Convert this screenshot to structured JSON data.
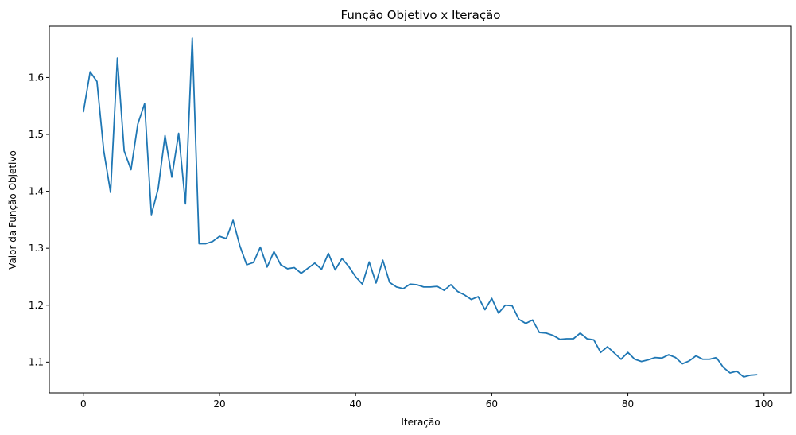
{
  "chart_data": {
    "type": "line",
    "title": "Função Objetivo x Iteração",
    "xlabel": "Iteração",
    "ylabel": "Valor da Função Objetivo",
    "xlim": [
      -5,
      104
    ],
    "ylim": [
      1.046,
      1.69
    ],
    "xticks": [
      0,
      20,
      40,
      60,
      80,
      100
    ],
    "yticks": [
      1.1,
      1.2,
      1.3,
      1.4,
      1.5,
      1.6
    ],
    "xtick_labels": [
      "0",
      "20",
      "40",
      "60",
      "80",
      "100"
    ],
    "ytick_labels": [
      "1.1",
      "1.2",
      "1.3",
      "1.4",
      "1.5",
      "1.6"
    ],
    "grid": false,
    "line_color": "#1f77b4",
    "series": [
      {
        "x": [
          0,
          1,
          2,
          3,
          4,
          5,
          6,
          7,
          8,
          9,
          10,
          11,
          12,
          13,
          14,
          15,
          16,
          17,
          18,
          19,
          20,
          21,
          22,
          23,
          24,
          25,
          26,
          27,
          28,
          29,
          30,
          31,
          32,
          33,
          34,
          35,
          36,
          37,
          38,
          39,
          40,
          41,
          42,
          43,
          44,
          45,
          46,
          47,
          48,
          49,
          50,
          51,
          52,
          53,
          54,
          55,
          56,
          57,
          58,
          59,
          60,
          61,
          62,
          63,
          64,
          65,
          66,
          67,
          68,
          69,
          70,
          71,
          72,
          73,
          74,
          75,
          76,
          77,
          78,
          79,
          80,
          81,
          82,
          83,
          84,
          85,
          86,
          87,
          88,
          89,
          90,
          91,
          92,
          93,
          94,
          95,
          96,
          97,
          98,
          99
        ],
        "values": [
          1.539,
          1.61,
          1.593,
          1.471,
          1.398,
          1.634,
          1.471,
          1.438,
          1.518,
          1.554,
          1.359,
          1.405,
          1.498,
          1.425,
          1.502,
          1.378,
          1.669,
          1.308,
          1.308,
          1.312,
          1.321,
          1.317,
          1.349,
          1.304,
          1.271,
          1.275,
          1.302,
          1.267,
          1.294,
          1.271,
          1.264,
          1.266,
          1.256,
          1.265,
          1.274,
          1.263,
          1.291,
          1.262,
          1.282,
          1.268,
          1.25,
          1.237,
          1.276,
          1.239,
          1.279,
          1.24,
          1.232,
          1.229,
          1.237,
          1.236,
          1.232,
          1.232,
          1.233,
          1.226,
          1.236,
          1.224,
          1.218,
          1.21,
          1.215,
          1.192,
          1.212,
          1.186,
          1.2,
          1.199,
          1.175,
          1.168,
          1.174,
          1.152,
          1.151,
          1.147,
          1.14,
          1.141,
          1.141,
          1.151,
          1.141,
          1.139,
          1.117,
          1.127,
          1.116,
          1.105,
          1.117,
          1.105,
          1.101,
          1.104,
          1.108,
          1.107,
          1.113,
          1.108,
          1.097,
          1.102,
          1.111,
          1.105,
          1.105,
          1.108,
          1.091,
          1.081,
          1.084,
          1.074,
          1.077,
          1.078
        ]
      }
    ]
  }
}
